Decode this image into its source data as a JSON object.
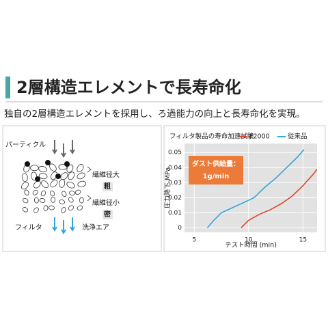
{
  "header": {
    "title": "2層構造エレメントで長寿命化",
    "subtitle": "独自の2層構造エレメントを採用し、ろ過能力の向上と長寿命化を実現。"
  },
  "diagram": {
    "particle": "パーティクル",
    "coarse_fiber": "繊維径大",
    "coarse": "粗",
    "fine_fiber": "繊維径小",
    "dense": "密",
    "filter": "フィルタ",
    "cleaning_air": "洗浄エア"
  },
  "chart_data": {
    "type": "line",
    "title": "フィルタ製品の寿命加速試験",
    "x_label": "テスト時間 (min)",
    "y_label": "圧力降下 MPa",
    "annotation": [
      "ダスト供給量：",
      "1g/min"
    ],
    "xlim": [
      4.1,
      16.3
    ],
    "xticks": [
      5,
      10,
      15
    ],
    "ylim": [
      -0.003,
      0.056
    ],
    "yticks": [
      0,
      0.01,
      0.02,
      0.03,
      0.04,
      0.05
    ],
    "grid": true,
    "series": [
      {
        "name": "F2000",
        "color": "#e0452b",
        "x": [
          9.3,
          10,
          11,
          12,
          13,
          14,
          15,
          16,
          16.3
        ],
        "values": [
          0,
          0.005,
          0.009,
          0.012,
          0.016,
          0.021,
          0.028,
          0.036,
          0.039
        ]
      },
      {
        "name": "従来品",
        "color": "#2fa6dc",
        "x": [
          6.2,
          6.8,
          7.5,
          9,
          10.5,
          11.5,
          12.5,
          13.5,
          14.5,
          15.1
        ],
        "values": [
          0,
          0.005,
          0.01,
          0.015,
          0.02,
          0.027,
          0.033,
          0.04,
          0.047,
          0.052
        ]
      }
    ]
  }
}
